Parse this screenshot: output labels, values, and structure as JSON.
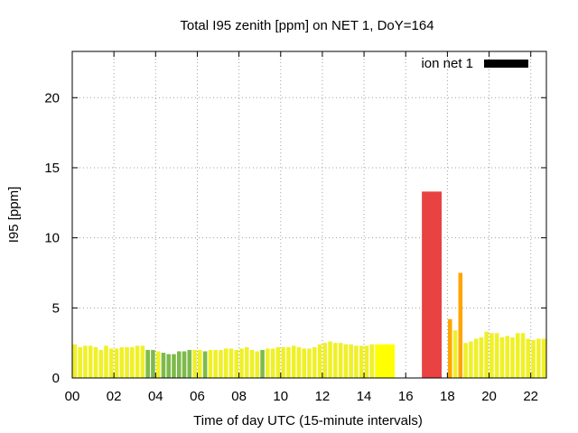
{
  "chart_data": {
    "type": "bar",
    "title": "Total I95 zenith [ppm] on NET 1, DoY=164",
    "xlabel": "Time of day UTC (15-minute intervals)",
    "ylabel": "I95 [ppm]",
    "xlim": [
      0,
      22.75
    ],
    "ylim": [
      0,
      23.3
    ],
    "xticks": [
      0,
      2,
      4,
      6,
      8,
      10,
      12,
      14,
      16,
      18,
      20,
      22
    ],
    "xtick_labels": [
      "00",
      "02",
      "04",
      "06",
      "08",
      "10",
      "12",
      "14",
      "16",
      "18",
      "20",
      "22"
    ],
    "yticks": [
      0,
      5,
      10,
      15,
      20
    ],
    "ytick_labels": [
      "0",
      "5",
      "10",
      "15",
      "20"
    ],
    "grid": true,
    "legend": {
      "label": "ion net 1",
      "color": "#000000",
      "position": "top-right"
    },
    "colors": {
      "yellow": "#ffff00",
      "bright_yellow": "#f0f028",
      "green": "#7dba4a",
      "orange": "#ffa500",
      "red": "#e84242"
    },
    "bars": [
      {
        "x": 0.0,
        "w": 0.25,
        "v": 2.4,
        "c": "bright_yellow"
      },
      {
        "x": 0.25,
        "w": 0.25,
        "v": 2.2,
        "c": "bright_yellow"
      },
      {
        "x": 0.5,
        "w": 0.25,
        "v": 2.3,
        "c": "bright_yellow"
      },
      {
        "x": 0.75,
        "w": 0.25,
        "v": 2.3,
        "c": "bright_yellow"
      },
      {
        "x": 1.0,
        "w": 0.25,
        "v": 2.2,
        "c": "bright_yellow"
      },
      {
        "x": 1.25,
        "w": 0.25,
        "v": 2.0,
        "c": "bright_yellow"
      },
      {
        "x": 1.5,
        "w": 0.25,
        "v": 2.3,
        "c": "bright_yellow"
      },
      {
        "x": 1.75,
        "w": 0.25,
        "v": 2.1,
        "c": "bright_yellow"
      },
      {
        "x": 2.0,
        "w": 0.25,
        "v": 2.1,
        "c": "bright_yellow"
      },
      {
        "x": 2.25,
        "w": 0.25,
        "v": 2.2,
        "c": "bright_yellow"
      },
      {
        "x": 2.5,
        "w": 0.25,
        "v": 2.2,
        "c": "bright_yellow"
      },
      {
        "x": 2.75,
        "w": 0.25,
        "v": 2.2,
        "c": "bright_yellow"
      },
      {
        "x": 3.0,
        "w": 0.25,
        "v": 2.3,
        "c": "bright_yellow"
      },
      {
        "x": 3.25,
        "w": 0.25,
        "v": 2.3,
        "c": "bright_yellow"
      },
      {
        "x": 3.5,
        "w": 0.25,
        "v": 2.0,
        "c": "green"
      },
      {
        "x": 3.75,
        "w": 0.25,
        "v": 2.0,
        "c": "green"
      },
      {
        "x": 4.0,
        "w": 0.25,
        "v": 1.9,
        "c": "bright_yellow"
      },
      {
        "x": 4.25,
        "w": 0.25,
        "v": 1.8,
        "c": "green"
      },
      {
        "x": 4.5,
        "w": 0.25,
        "v": 1.7,
        "c": "green"
      },
      {
        "x": 4.75,
        "w": 0.25,
        "v": 1.7,
        "c": "green"
      },
      {
        "x": 5.0,
        "w": 0.25,
        "v": 1.9,
        "c": "green"
      },
      {
        "x": 5.25,
        "w": 0.25,
        "v": 1.9,
        "c": "green"
      },
      {
        "x": 5.5,
        "w": 0.25,
        "v": 2.0,
        "c": "green"
      },
      {
        "x": 5.75,
        "w": 0.25,
        "v": 2.0,
        "c": "bright_yellow"
      },
      {
        "x": 6.0,
        "w": 0.25,
        "v": 2.0,
        "c": "bright_yellow"
      },
      {
        "x": 6.25,
        "w": 0.25,
        "v": 1.9,
        "c": "green"
      },
      {
        "x": 6.5,
        "w": 0.25,
        "v": 2.0,
        "c": "bright_yellow"
      },
      {
        "x": 6.75,
        "w": 0.25,
        "v": 2.0,
        "c": "bright_yellow"
      },
      {
        "x": 7.0,
        "w": 0.25,
        "v": 2.0,
        "c": "bright_yellow"
      },
      {
        "x": 7.25,
        "w": 0.25,
        "v": 2.1,
        "c": "bright_yellow"
      },
      {
        "x": 7.5,
        "w": 0.25,
        "v": 2.1,
        "c": "bright_yellow"
      },
      {
        "x": 7.75,
        "w": 0.25,
        "v": 2.0,
        "c": "bright_yellow"
      },
      {
        "x": 8.0,
        "w": 0.25,
        "v": 2.1,
        "c": "bright_yellow"
      },
      {
        "x": 8.25,
        "w": 0.25,
        "v": 2.2,
        "c": "bright_yellow"
      },
      {
        "x": 8.5,
        "w": 0.25,
        "v": 2.0,
        "c": "bright_yellow"
      },
      {
        "x": 8.75,
        "w": 0.25,
        "v": 1.9,
        "c": "bright_yellow"
      },
      {
        "x": 9.0,
        "w": 0.25,
        "v": 2.0,
        "c": "green"
      },
      {
        "x": 9.25,
        "w": 0.25,
        "v": 2.1,
        "c": "bright_yellow"
      },
      {
        "x": 9.5,
        "w": 0.25,
        "v": 2.1,
        "c": "bright_yellow"
      },
      {
        "x": 9.75,
        "w": 0.25,
        "v": 2.2,
        "c": "bright_yellow"
      },
      {
        "x": 10.0,
        "w": 0.25,
        "v": 2.2,
        "c": "bright_yellow"
      },
      {
        "x": 10.25,
        "w": 0.25,
        "v": 2.2,
        "c": "bright_yellow"
      },
      {
        "x": 10.5,
        "w": 0.25,
        "v": 2.3,
        "c": "bright_yellow"
      },
      {
        "x": 10.75,
        "w": 0.25,
        "v": 2.2,
        "c": "bright_yellow"
      },
      {
        "x": 11.0,
        "w": 0.25,
        "v": 2.1,
        "c": "bright_yellow"
      },
      {
        "x": 11.25,
        "w": 0.25,
        "v": 2.1,
        "c": "bright_yellow"
      },
      {
        "x": 11.5,
        "w": 0.25,
        "v": 2.2,
        "c": "bright_yellow"
      },
      {
        "x": 11.75,
        "w": 0.25,
        "v": 2.4,
        "c": "bright_yellow"
      },
      {
        "x": 12.0,
        "w": 0.25,
        "v": 2.5,
        "c": "bright_yellow"
      },
      {
        "x": 12.25,
        "w": 0.25,
        "v": 2.6,
        "c": "bright_yellow"
      },
      {
        "x": 12.5,
        "w": 0.25,
        "v": 2.5,
        "c": "bright_yellow"
      },
      {
        "x": 12.75,
        "w": 0.25,
        "v": 2.5,
        "c": "bright_yellow"
      },
      {
        "x": 13.0,
        "w": 0.25,
        "v": 2.4,
        "c": "bright_yellow"
      },
      {
        "x": 13.25,
        "w": 0.25,
        "v": 2.4,
        "c": "bright_yellow"
      },
      {
        "x": 13.5,
        "w": 0.25,
        "v": 2.3,
        "c": "bright_yellow"
      },
      {
        "x": 13.75,
        "w": 0.25,
        "v": 2.3,
        "c": "bright_yellow"
      },
      {
        "x": 14.0,
        "w": 0.25,
        "v": 2.3,
        "c": "bright_yellow"
      },
      {
        "x": 14.25,
        "w": 0.25,
        "v": 2.4,
        "c": "bright_yellow"
      },
      {
        "x": 14.5,
        "w": 1.0,
        "v": 2.4,
        "c": "yellow"
      },
      {
        "x": 16.75,
        "w": 1.0,
        "v": 13.3,
        "c": "red"
      },
      {
        "x": 18.0,
        "w": 0.25,
        "v": 4.2,
        "c": "orange"
      },
      {
        "x": 18.25,
        "w": 0.25,
        "v": 3.4,
        "c": "bright_yellow"
      },
      {
        "x": 18.5,
        "w": 0.25,
        "v": 7.5,
        "c": "orange"
      },
      {
        "x": 18.75,
        "w": 0.25,
        "v": 2.5,
        "c": "bright_yellow"
      },
      {
        "x": 19.0,
        "w": 0.25,
        "v": 2.6,
        "c": "bright_yellow"
      },
      {
        "x": 19.25,
        "w": 0.25,
        "v": 2.8,
        "c": "bright_yellow"
      },
      {
        "x": 19.5,
        "w": 0.25,
        "v": 2.9,
        "c": "bright_yellow"
      },
      {
        "x": 19.75,
        "w": 0.25,
        "v": 3.3,
        "c": "bright_yellow"
      },
      {
        "x": 20.0,
        "w": 0.25,
        "v": 3.2,
        "c": "bright_yellow"
      },
      {
        "x": 20.25,
        "w": 0.25,
        "v": 3.2,
        "c": "bright_yellow"
      },
      {
        "x": 20.5,
        "w": 0.25,
        "v": 2.9,
        "c": "bright_yellow"
      },
      {
        "x": 20.75,
        "w": 0.25,
        "v": 3.0,
        "c": "bright_yellow"
      },
      {
        "x": 21.0,
        "w": 0.25,
        "v": 2.9,
        "c": "bright_yellow"
      },
      {
        "x": 21.25,
        "w": 0.25,
        "v": 3.2,
        "c": "bright_yellow"
      },
      {
        "x": 21.5,
        "w": 0.25,
        "v": 3.2,
        "c": "bright_yellow"
      },
      {
        "x": 21.75,
        "w": 0.25,
        "v": 2.8,
        "c": "bright_yellow"
      },
      {
        "x": 22.0,
        "w": 0.25,
        "v": 2.7,
        "c": "bright_yellow"
      },
      {
        "x": 22.25,
        "w": 0.25,
        "v": 2.8,
        "c": "bright_yellow"
      },
      {
        "x": 22.5,
        "w": 0.25,
        "v": 2.8,
        "c": "bright_yellow"
      }
    ]
  }
}
